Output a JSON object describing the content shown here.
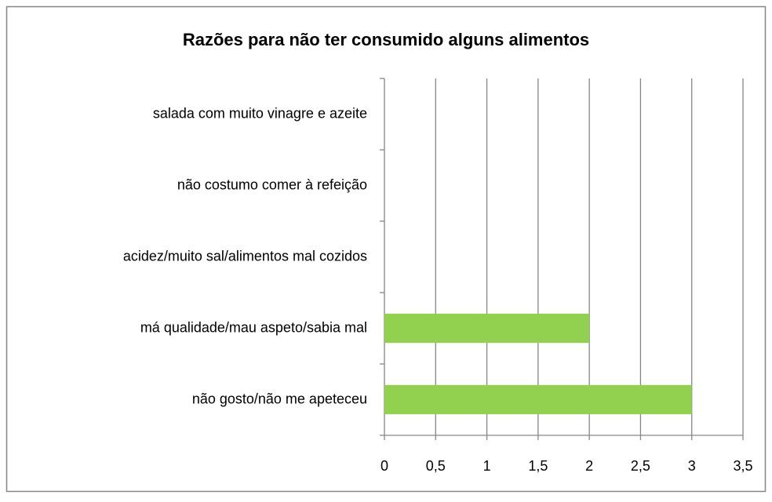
{
  "chart_data": {
    "type": "bar",
    "orientation": "horizontal",
    "title": "Razões para não ter consumido alguns alimentos",
    "categories": [
      "salada com muito vinagre e azeite",
      "não costumo comer à refeição",
      "acidez/muito sal/alimentos mal cozidos",
      "má qualidade/mau aspeto/sabia mal",
      "não gosto/não me apeteceu"
    ],
    "values": [
      0,
      0,
      0,
      2,
      3
    ],
    "color": "#92d050",
    "xlim": [
      0,
      3.5
    ],
    "xticks": [
      0,
      {
        "value": 0.5,
        "label": "0,5"
      },
      1,
      {
        "value": 1.5,
        "label": "1,5"
      },
      2,
      {
        "value": 2.5,
        "label": "2,5"
      },
      3,
      {
        "value": 3.5,
        "label": "3,5"
      }
    ],
    "grid": true
  }
}
